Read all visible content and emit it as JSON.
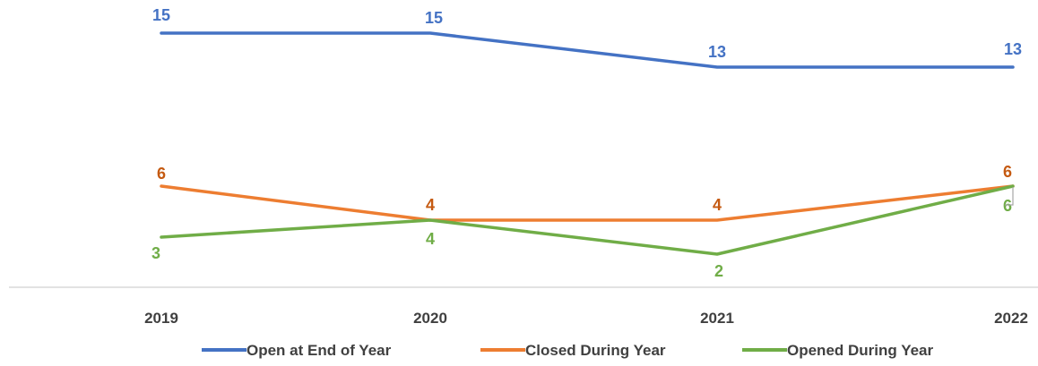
{
  "chart_data": {
    "type": "line",
    "categories": [
      "2019",
      "2020",
      "2021",
      "2022"
    ],
    "series": [
      {
        "name": "Open at End of Year",
        "values": [
          15,
          15,
          13,
          13
        ],
        "color": "#4472C4",
        "label_color": "#4472C4"
      },
      {
        "name": "Closed During Year",
        "values": [
          6,
          4,
          4,
          6
        ],
        "color": "#ED7D31",
        "label_color": "#C55A11"
      },
      {
        "name": "Opened During Year",
        "values": [
          3,
          4,
          2,
          6
        ],
        "color": "#70AD47",
        "label_color": "#70AD47"
      }
    ],
    "title": "",
    "xlabel": "",
    "ylabel": "",
    "ylim": [
      0,
      16
    ],
    "grid": false,
    "legend": "bottom"
  }
}
